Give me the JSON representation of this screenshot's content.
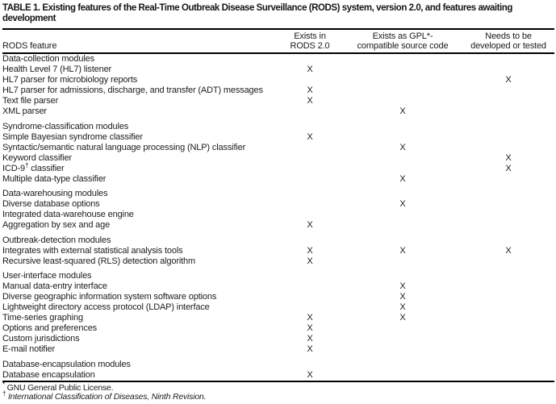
{
  "title": "TABLE 1. Existing features of the Real-Time Outbreak Disease Surveillance (RODS) system, version 2.0, and features awaiting development",
  "table": {
    "feature_header": "RODS feature",
    "column_headers": [
      "Exists in\nRODS 2.0",
      "Exists as GPL*-\ncompatible source code",
      "Needs to be\ndeveloped or tested"
    ],
    "mark_glyph": "X",
    "sections": [
      {
        "name": "Data-collection modules",
        "rows": [
          {
            "feature": "Health Level 7 (HL7) listener",
            "marks": [
              "X",
              "",
              ""
            ]
          },
          {
            "feature": "HL7 parser for microbiology reports",
            "marks": [
              "",
              "",
              "X"
            ]
          },
          {
            "feature": "HL7 parser for admissions, discharge, and transfer (ADT) messages",
            "marks": [
              "X",
              "",
              ""
            ]
          },
          {
            "feature": "Text file parser",
            "marks": [
              "X",
              "",
              ""
            ]
          },
          {
            "feature": "XML parser",
            "marks": [
              "",
              "X",
              ""
            ]
          }
        ]
      },
      {
        "name": "Syndrome-classification modules",
        "rows": [
          {
            "feature": "Simple Bayesian syndrome classifier",
            "marks": [
              "X",
              "",
              ""
            ]
          },
          {
            "feature": "Syntactic/semantic natural language processing (NLP) classifier",
            "marks": [
              "",
              "X",
              ""
            ]
          },
          {
            "feature": "Keyword classifier",
            "marks": [
              "",
              "",
              "X"
            ]
          },
          {
            "feature": "ICD-9† classifier",
            "marks": [
              "",
              "",
              "X"
            ]
          },
          {
            "feature": "Multiple data-type classifier",
            "marks": [
              "",
              "X",
              ""
            ]
          }
        ]
      },
      {
        "name": "Data-warehousing modules",
        "rows": [
          {
            "feature": "Diverse database options",
            "marks": [
              "",
              "X",
              ""
            ]
          },
          {
            "feature": "Integrated data-warehouse engine",
            "marks": [
              "",
              "",
              ""
            ]
          },
          {
            "feature": "Aggregation by sex and age",
            "marks": [
              "X",
              "",
              ""
            ]
          }
        ]
      },
      {
        "name": "Outbreak-detection modules",
        "rows": [
          {
            "feature": "Integrates with external statistical analysis tools",
            "marks": [
              "X",
              "X",
              "X"
            ]
          },
          {
            "feature": "Recursive least-squared (RLS) detection algorithm",
            "marks": [
              "X",
              "",
              ""
            ]
          }
        ]
      },
      {
        "name": "User-interface modules",
        "rows": [
          {
            "feature": "Manual data-entry interface",
            "marks": [
              "",
              "X",
              ""
            ]
          },
          {
            "feature": "Diverse geographic information system software options",
            "marks": [
              "",
              "X",
              ""
            ]
          },
          {
            "feature": "Lightweight directory access protocol (LDAP) interface",
            "marks": [
              "",
              "X",
              ""
            ]
          },
          {
            "feature": "Time-series graphing",
            "marks": [
              "X",
              "X",
              ""
            ]
          },
          {
            "feature": "Options and preferences",
            "marks": [
              "X",
              "",
              ""
            ]
          },
          {
            "feature": "Custom jurisdictions",
            "marks": [
              "X",
              "",
              ""
            ]
          },
          {
            "feature": "E-mail notifier",
            "marks": [
              "X",
              "",
              ""
            ]
          }
        ]
      },
      {
        "name": "Database-encapsulation modules",
        "rows": [
          {
            "feature": "Database encapsulation",
            "marks": [
              "X",
              "",
              ""
            ]
          }
        ]
      }
    ]
  },
  "footnotes": [
    {
      "marker": "*",
      "text": "GNU General Public License.",
      "italic": false
    },
    {
      "marker": "†",
      "text": "International Classification of Diseases, Ninth Revision.",
      "italic": true
    }
  ]
}
